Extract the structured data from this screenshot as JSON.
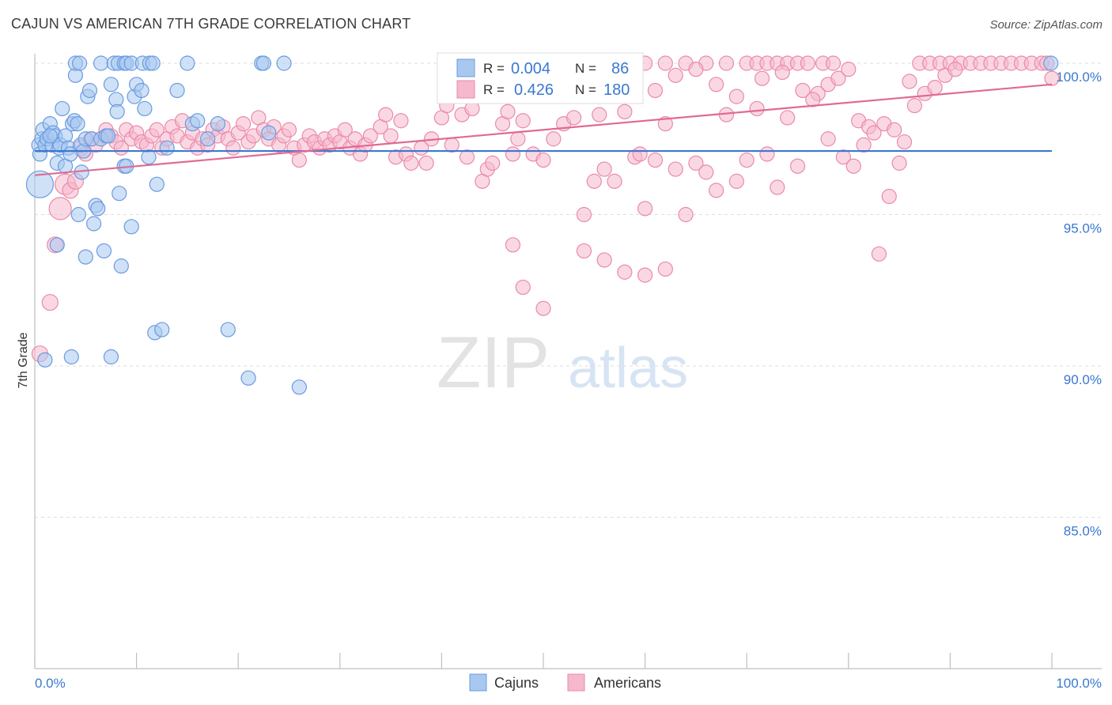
{
  "title": "CAJUN VS AMERICAN 7TH GRADE CORRELATION CHART",
  "source": "Source: ZipAtlas.com",
  "watermark": {
    "zip": "ZIP",
    "atlas": "atlas"
  },
  "colors": {
    "cajuns_fill": "#a8c8f0",
    "cajuns_stroke": "#6a9be0",
    "cajuns_line": "#3a78d0",
    "americans_fill": "#f5b8cc",
    "americans_stroke": "#ea8aa8",
    "americans_line": "#e06a94",
    "axis_label": "#3a78d0",
    "grid": "#dddddd"
  },
  "legend": {
    "r_label": "R =",
    "n_label": "N =",
    "cajuns": {
      "r": "0.004",
      "n": "86"
    },
    "americans": {
      "r": "0.426",
      "n": "180"
    }
  },
  "chart_data": {
    "type": "scatter",
    "title": "CAJUN VS AMERICAN 7TH GRADE CORRELATION CHART",
    "xlabel": "",
    "ylabel": "7th Grade",
    "xlim": [
      0,
      100
    ],
    "ylim": [
      80.5,
      100.8
    ],
    "x_tick_labels": [
      "0.0%",
      "100.0%"
    ],
    "y_ticks": [
      {
        "value": 100,
        "label": "100.0%"
      },
      {
        "value": 95,
        "label": "95.0%"
      },
      {
        "value": 90,
        "label": "90.0%"
      },
      {
        "value": 85,
        "label": "85.0%"
      }
    ],
    "grid": true,
    "legend_position": "bottom-center",
    "series": [
      {
        "name": "Cajuns",
        "trend": {
          "x": [
            0,
            100
          ],
          "y": [
            97.1,
            97.1
          ]
        },
        "points": [
          [
            0.5,
            96.0
          ],
          [
            0.4,
            97.3
          ],
          [
            0.5,
            97.0
          ],
          [
            0.7,
            97.5
          ],
          [
            0.8,
            97.8
          ],
          [
            1.0,
            97.3
          ],
          [
            1.2,
            97.5
          ],
          [
            1.5,
            98.0
          ],
          [
            1.7,
            97.3
          ],
          [
            1.8,
            97.7
          ],
          [
            2.0,
            97.6
          ],
          [
            2.2,
            96.7
          ],
          [
            2.4,
            97.2
          ],
          [
            2.5,
            97.3
          ],
          [
            2.7,
            98.5
          ],
          [
            3.0,
            97.6
          ],
          [
            3.0,
            96.6
          ],
          [
            3.3,
            97.2
          ],
          [
            3.5,
            97.0
          ],
          [
            3.7,
            98.0
          ],
          [
            3.9,
            98.1
          ],
          [
            4.0,
            99.6
          ],
          [
            4.2,
            98.0
          ],
          [
            4.3,
            95.0
          ],
          [
            4.5,
            97.3
          ],
          [
            4.6,
            96.4
          ],
          [
            4.8,
            97.1
          ],
          [
            5.0,
            97.5
          ],
          [
            5.2,
            98.9
          ],
          [
            5.4,
            99.1
          ],
          [
            5.6,
            97.5
          ],
          [
            5.8,
            94.7
          ],
          [
            6.0,
            95.3
          ],
          [
            6.2,
            95.2
          ],
          [
            6.5,
            97.5
          ],
          [
            7.0,
            97.6
          ],
          [
            7.2,
            97.6
          ],
          [
            7.5,
            99.3
          ],
          [
            8.0,
            98.8
          ],
          [
            8.1,
            98.4
          ],
          [
            8.3,
            95.7
          ],
          [
            8.5,
            93.3
          ],
          [
            8.8,
            96.6
          ],
          [
            9.0,
            96.6
          ],
          [
            9.5,
            94.6
          ],
          [
            9.8,
            98.9
          ],
          [
            10.0,
            99.3
          ],
          [
            10.5,
            99.1
          ],
          [
            10.8,
            98.5
          ],
          [
            11.2,
            96.9
          ],
          [
            11.8,
            91.1
          ],
          [
            12.0,
            96.0
          ],
          [
            12.5,
            91.2
          ],
          [
            13.0,
            97.2
          ],
          [
            14.0,
            99.1
          ],
          [
            15.5,
            98.0
          ],
          [
            16.0,
            98.1
          ],
          [
            17.0,
            97.5
          ],
          [
            18.0,
            98.0
          ],
          [
            19.0,
            91.2
          ],
          [
            21.0,
            89.6
          ],
          [
            23.0,
            97.7
          ],
          [
            24.5,
            100.0
          ],
          [
            26.0,
            89.3
          ],
          [
            4.0,
            100.0
          ],
          [
            4.4,
            100.0
          ],
          [
            6.5,
            100.0
          ],
          [
            7.8,
            100.0
          ],
          [
            8.2,
            100.0
          ],
          [
            8.8,
            100.0
          ],
          [
            9.0,
            100.0
          ],
          [
            9.5,
            100.0
          ],
          [
            10.6,
            100.0
          ],
          [
            11.3,
            100.0
          ],
          [
            11.6,
            100.0
          ],
          [
            15.0,
            100.0
          ],
          [
            22.3,
            100.0
          ],
          [
            22.5,
            100.0
          ],
          [
            99.9,
            100.0
          ],
          [
            1.0,
            90.2
          ],
          [
            1.5,
            97.6
          ],
          [
            2.2,
            94.0
          ],
          [
            3.6,
            90.3
          ],
          [
            5.0,
            93.6
          ],
          [
            6.8,
            93.8
          ],
          [
            7.5,
            90.3
          ]
        ]
      },
      {
        "name": "Americans",
        "trend": {
          "x": [
            0,
            100
          ],
          "y": [
            96.3,
            99.3
          ]
        },
        "points": [
          [
            0.5,
            90.4
          ],
          [
            1.5,
            92.1
          ],
          [
            2.0,
            94.0
          ],
          [
            2.5,
            95.2
          ],
          [
            3.0,
            96.0
          ],
          [
            3.5,
            95.8
          ],
          [
            4.0,
            96.1
          ],
          [
            4.5,
            97.2
          ],
          [
            5.0,
            97.0
          ],
          [
            5.5,
            97.5
          ],
          [
            6.0,
            97.3
          ],
          [
            6.5,
            97.5
          ],
          [
            7.0,
            97.8
          ],
          [
            7.5,
            97.6
          ],
          [
            8.0,
            97.4
          ],
          [
            8.5,
            97.2
          ],
          [
            9.0,
            97.8
          ],
          [
            9.5,
            97.5
          ],
          [
            10.0,
            97.7
          ],
          [
            10.5,
            97.4
          ],
          [
            11.0,
            97.3
          ],
          [
            11.5,
            97.6
          ],
          [
            12.0,
            97.8
          ],
          [
            12.5,
            97.2
          ],
          [
            13.0,
            97.5
          ],
          [
            13.5,
            97.9
          ],
          [
            14.0,
            97.6
          ],
          [
            14.5,
            98.1
          ],
          [
            15.0,
            97.4
          ],
          [
            15.5,
            97.7
          ],
          [
            16.0,
            97.2
          ],
          [
            16.5,
            97.5
          ],
          [
            17.0,
            97.3
          ],
          [
            17.5,
            97.8
          ],
          [
            18.0,
            97.6
          ],
          [
            18.5,
            97.9
          ],
          [
            19.0,
            97.5
          ],
          [
            19.5,
            97.2
          ],
          [
            20.0,
            97.7
          ],
          [
            20.5,
            98.0
          ],
          [
            21.0,
            97.4
          ],
          [
            21.5,
            97.6
          ],
          [
            22.0,
            98.2
          ],
          [
            22.5,
            97.8
          ],
          [
            23.0,
            97.5
          ],
          [
            23.5,
            97.9
          ],
          [
            24.0,
            97.3
          ],
          [
            24.5,
            97.6
          ],
          [
            25.0,
            97.8
          ],
          [
            25.5,
            97.2
          ],
          [
            26.0,
            96.8
          ],
          [
            26.5,
            97.3
          ],
          [
            27.0,
            97.6
          ],
          [
            27.5,
            97.4
          ],
          [
            28.0,
            97.2
          ],
          [
            28.5,
            97.5
          ],
          [
            29.0,
            97.3
          ],
          [
            29.5,
            97.6
          ],
          [
            30.0,
            97.4
          ],
          [
            30.5,
            97.8
          ],
          [
            31.0,
            97.2
          ],
          [
            31.5,
            97.5
          ],
          [
            32.0,
            97.0
          ],
          [
            32.5,
            97.3
          ],
          [
            33.0,
            97.6
          ],
          [
            34.0,
            97.9
          ],
          [
            34.5,
            98.3
          ],
          [
            35.0,
            97.6
          ],
          [
            35.5,
            96.9
          ],
          [
            36.0,
            98.1
          ],
          [
            36.5,
            97.0
          ],
          [
            37.0,
            96.7
          ],
          [
            38.0,
            97.2
          ],
          [
            38.5,
            96.7
          ],
          [
            39.0,
            97.5
          ],
          [
            40.0,
            98.2
          ],
          [
            40.5,
            98.6
          ],
          [
            41.0,
            97.3
          ],
          [
            42.0,
            98.3
          ],
          [
            42.5,
            96.9
          ],
          [
            43.0,
            98.5
          ],
          [
            44.0,
            96.1
          ],
          [
            44.5,
            96.5
          ],
          [
            45.0,
            96.7
          ],
          [
            46.0,
            98.0
          ],
          [
            46.5,
            98.4
          ],
          [
            47.0,
            97.0
          ],
          [
            47.5,
            97.5
          ],
          [
            48.0,
            98.1
          ],
          [
            49.0,
            97.0
          ],
          [
            50.0,
            96.8
          ],
          [
            51.0,
            97.5
          ],
          [
            52.0,
            98.0
          ],
          [
            53.0,
            98.2
          ],
          [
            54.0,
            95.0
          ],
          [
            55.0,
            96.1
          ],
          [
            55.5,
            98.3
          ],
          [
            56.0,
            96.5
          ],
          [
            57.0,
            96.1
          ],
          [
            58.0,
            98.4
          ],
          [
            59.0,
            96.9
          ],
          [
            59.5,
            97.0
          ],
          [
            60.0,
            95.2
          ],
          [
            61.0,
            96.8
          ],
          [
            62.0,
            98.0
          ],
          [
            63.0,
            96.5
          ],
          [
            64.0,
            95.0
          ],
          [
            65.0,
            96.7
          ],
          [
            66.0,
            96.4
          ],
          [
            67.0,
            95.8
          ],
          [
            68.0,
            98.3
          ],
          [
            69.0,
            96.1
          ],
          [
            70.0,
            96.8
          ],
          [
            71.0,
            98.5
          ],
          [
            72.0,
            97.0
          ],
          [
            73.0,
            95.9
          ],
          [
            74.0,
            98.2
          ],
          [
            75.0,
            96.6
          ],
          [
            77.0,
            99.0
          ],
          [
            78.0,
            99.3
          ],
          [
            79.0,
            99.5
          ],
          [
            80.0,
            99.8
          ],
          [
            81.0,
            98.1
          ],
          [
            82.0,
            97.9
          ],
          [
            83.0,
            93.7
          ],
          [
            84.0,
            95.6
          ],
          [
            85.0,
            96.7
          ],
          [
            86.0,
            99.4
          ],
          [
            87.0,
            100.0
          ],
          [
            88.0,
            100.0
          ],
          [
            89.0,
            100.0
          ],
          [
            90.0,
            100.0
          ],
          [
            91.0,
            100.0
          ],
          [
            92.0,
            100.0
          ],
          [
            93.0,
            100.0
          ],
          [
            94.0,
            100.0
          ],
          [
            95.0,
            100.0
          ],
          [
            96.0,
            100.0
          ],
          [
            97.0,
            100.0
          ],
          [
            98.0,
            100.0
          ],
          [
            99.0,
            100.0
          ],
          [
            99.5,
            100.0
          ],
          [
            100.0,
            99.5
          ],
          [
            60.0,
            100.0
          ],
          [
            62.0,
            100.0
          ],
          [
            64.0,
            100.0
          ],
          [
            66.0,
            100.0
          ],
          [
            68.0,
            100.0
          ],
          [
            70.0,
            100.0
          ],
          [
            71.0,
            100.0
          ],
          [
            72.0,
            100.0
          ],
          [
            73.0,
            100.0
          ],
          [
            74.0,
            100.0
          ],
          [
            75.0,
            100.0
          ],
          [
            76.0,
            100.0
          ],
          [
            77.5,
            100.0
          ],
          [
            78.5,
            100.0
          ],
          [
            48.0,
            92.6
          ],
          [
            50.0,
            91.9
          ],
          [
            54.0,
            93.8
          ],
          [
            56.0,
            93.5
          ],
          [
            58.0,
            93.1
          ],
          [
            60.0,
            93.0
          ],
          [
            62.0,
            93.2
          ],
          [
            47.0,
            94.0
          ],
          [
            55.5,
            98.9
          ],
          [
            57.0,
            99.2
          ],
          [
            59.0,
            99.4
          ],
          [
            61.0,
            99.1
          ],
          [
            63.0,
            99.6
          ],
          [
            65.0,
            99.8
          ],
          [
            67.0,
            99.3
          ],
          [
            69.0,
            98.9
          ],
          [
            71.5,
            99.5
          ],
          [
            73.5,
            99.7
          ],
          [
            75.5,
            99.1
          ],
          [
            76.5,
            98.8
          ],
          [
            78.0,
            97.5
          ],
          [
            79.5,
            96.9
          ],
          [
            80.5,
            96.6
          ],
          [
            81.5,
            97.3
          ],
          [
            82.5,
            97.7
          ],
          [
            83.5,
            98.0
          ],
          [
            84.5,
            97.8
          ],
          [
            85.5,
            97.4
          ],
          [
            86.5,
            98.6
          ],
          [
            87.5,
            99.0
          ],
          [
            88.5,
            99.2
          ],
          [
            89.5,
            99.6
          ],
          [
            90.5,
            99.8
          ]
        ]
      }
    ]
  }
}
